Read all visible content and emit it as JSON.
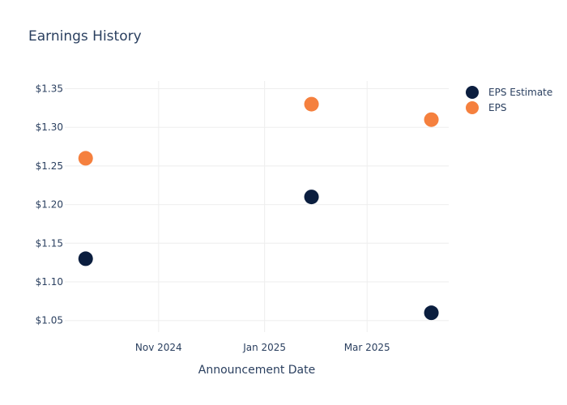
{
  "chart_data": {
    "type": "scatter",
    "title": "Earnings History",
    "xlabel": "Announcement Date",
    "ylabel": "",
    "x_ticks": [
      {
        "date": "2024-11-01",
        "label": "Nov 2024"
      },
      {
        "date": "2025-01-01",
        "label": "Jan 2025"
      },
      {
        "date": "2025-03-01",
        "label": "Mar 2025"
      }
    ],
    "y_ticks": [
      "$1.05",
      "$1.10",
      "$1.15",
      "$1.20",
      "$1.25",
      "$1.30",
      "$1.35"
    ],
    "y_tick_values": [
      1.05,
      1.1,
      1.15,
      1.2,
      1.25,
      1.3,
      1.35
    ],
    "xlim": [
      "2024-09-08",
      "2025-04-17"
    ],
    "ylim": [
      1.035,
      1.36
    ],
    "grid": true,
    "legend_position": "top-right",
    "series": [
      {
        "name": "EPS Estimate",
        "color": "#0b1e3f",
        "points": [
          {
            "x": "2024-09-20",
            "y": 1.13
          },
          {
            "x": "2025-01-28",
            "y": 1.21
          },
          {
            "x": "2025-04-07",
            "y": 1.06
          }
        ]
      },
      {
        "name": "EPS",
        "color": "#f5803e",
        "points": [
          {
            "x": "2024-09-20",
            "y": 1.26
          },
          {
            "x": "2025-01-28",
            "y": 1.33
          },
          {
            "x": "2025-04-07",
            "y": 1.31
          }
        ]
      }
    ]
  }
}
